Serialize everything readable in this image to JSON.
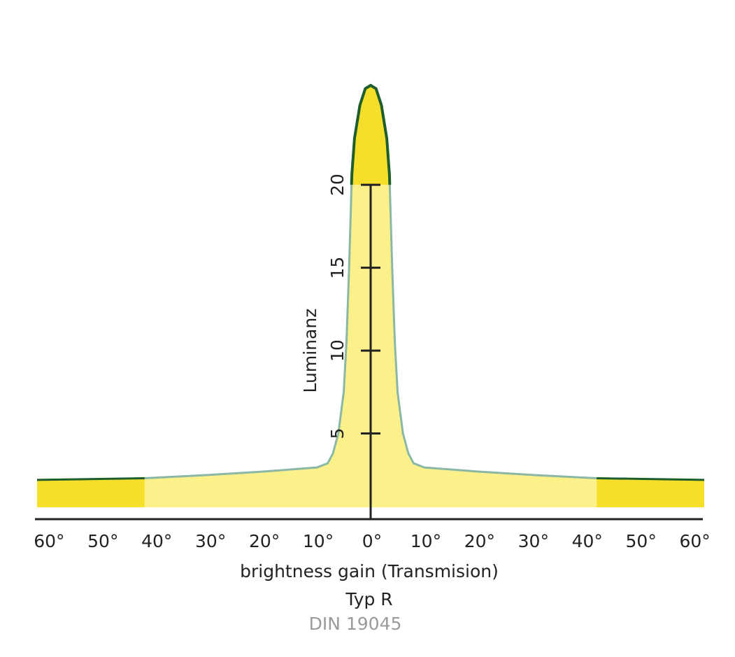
{
  "chart_data": {
    "type": "area",
    "x_label": "brightness gain (Transmision)",
    "subtitle": "Typ R",
    "note": "DIN 19045",
    "y_label": "Luminanz",
    "xlim": [
      -62,
      62
    ],
    "ylim": [
      0,
      26
    ],
    "xticks": [
      {
        "value": -60,
        "label": "60°"
      },
      {
        "value": -50,
        "label": "50°"
      },
      {
        "value": -40,
        "label": "40°"
      },
      {
        "value": -30,
        "label": "30°"
      },
      {
        "value": -20,
        "label": "20°"
      },
      {
        "value": -10,
        "label": "10°"
      },
      {
        "value": 0,
        "label": "0°"
      },
      {
        "value": 10,
        "label": "10°"
      },
      {
        "value": 20,
        "label": "20°"
      },
      {
        "value": 30,
        "label": "30°"
      },
      {
        "value": 40,
        "label": "40°"
      },
      {
        "value": 50,
        "label": "50°"
      },
      {
        "value": 60,
        "label": "60°"
      }
    ],
    "yticks": [
      5,
      10,
      15,
      20
    ],
    "highlight_color": "#f6df2a",
    "series": [
      {
        "color": "#f6df2a",
        "line_color": "#1d5e2c",
        "x": [
          -62,
          -42
        ],
        "values": [
          2.2,
          2.3
        ]
      },
      {
        "color": "#fcf08a",
        "line_color": "#8ab8a4",
        "x": [
          -42,
          -30,
          -20,
          -10,
          -8,
          -7,
          -6,
          -5,
          -4.5,
          -4,
          -3.5,
          -3,
          -2,
          -1,
          0,
          1,
          2,
          3,
          3.5,
          4,
          4.5,
          5,
          6,
          7,
          8,
          10,
          20,
          30,
          42
        ],
        "values": [
          2.3,
          2.5,
          2.7,
          2.95,
          3.2,
          3.8,
          5,
          7.5,
          10.5,
          15,
          20.6,
          22.8,
          24.8,
          25.8,
          26,
          25.8,
          24.8,
          22.8,
          20.6,
          15,
          10.5,
          7.5,
          5,
          3.8,
          3.2,
          2.95,
          2.7,
          2.5,
          2.3
        ]
      },
      {
        "color": "#f6df2a",
        "line_color": "#1d5e2c",
        "x": [
          42,
          62
        ],
        "values": [
          2.3,
          2.2
        ]
      }
    ]
  }
}
